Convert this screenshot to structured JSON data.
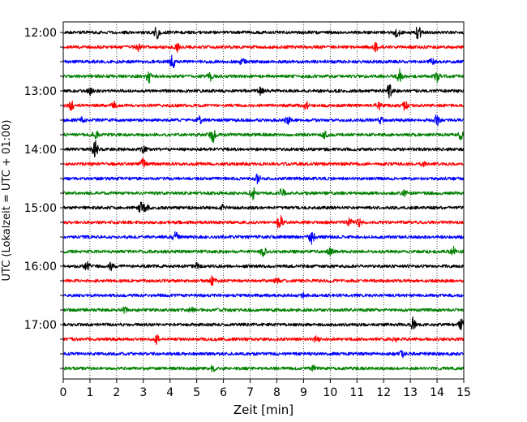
{
  "chart_data": {
    "type": "line",
    "title": "",
    "xlabel": "Zeit  [min]",
    "ylabel": "UTC (Lokalzeit = UTC + 01:00)",
    "xlim": [
      0,
      15
    ],
    "x_ticks": [
      "0",
      "1",
      "2",
      "3",
      "4",
      "5",
      "6",
      "7",
      "8",
      "9",
      "10",
      "11",
      "12",
      "13",
      "14",
      "15"
    ],
    "y_ticks": [
      "12:00",
      "13:00",
      "14:00",
      "15:00",
      "16:00",
      "17:00"
    ],
    "grid": "vertical dotted",
    "legend": "none",
    "trace_colors": [
      "#000000",
      "#ff0000",
      "#0000ff",
      "#008000"
    ],
    "traces": [
      {
        "time": "12:00",
        "color": "#000000",
        "events": [
          [
            3.5,
            8
          ],
          [
            12.5,
            7
          ],
          [
            13.3,
            9
          ]
        ]
      },
      {
        "time": "12:15",
        "color": "#ff0000",
        "events": [
          [
            2.8,
            5
          ],
          [
            4.3,
            5
          ],
          [
            11.7,
            4
          ]
        ]
      },
      {
        "time": "12:30",
        "color": "#0000ff",
        "events": [
          [
            4.1,
            8
          ],
          [
            6.7,
            4
          ],
          [
            13.8,
            3
          ]
        ]
      },
      {
        "time": "12:45",
        "color": "#008000",
        "events": [
          [
            3.2,
            7
          ],
          [
            5.5,
            5
          ],
          [
            12.6,
            9
          ],
          [
            14.0,
            6
          ]
        ]
      },
      {
        "time": "13:00",
        "color": "#000000",
        "events": [
          [
            1.0,
            4
          ],
          [
            7.4,
            4
          ],
          [
            12.2,
            9
          ]
        ]
      },
      {
        "time": "13:15",
        "color": "#ff0000",
        "events": [
          [
            0.3,
            5
          ],
          [
            1.9,
            4
          ],
          [
            9.1,
            4
          ],
          [
            11.8,
            5
          ],
          [
            12.8,
            5
          ]
        ]
      },
      {
        "time": "13:30",
        "color": "#0000ff",
        "events": [
          [
            0.7,
            3
          ],
          [
            5.1,
            4
          ],
          [
            8.4,
            4
          ],
          [
            11.9,
            4
          ],
          [
            14.0,
            6
          ]
        ]
      },
      {
        "time": "13:45",
        "color": "#008000",
        "events": [
          [
            1.2,
            6
          ],
          [
            5.6,
            9
          ],
          [
            9.8,
            4
          ],
          [
            14.9,
            5
          ]
        ]
      },
      {
        "time": "14:00",
        "color": "#000000",
        "events": [
          [
            1.2,
            10
          ],
          [
            3.0,
            3
          ]
        ]
      },
      {
        "time": "14:15",
        "color": "#ff0000",
        "events": [
          [
            3.0,
            6
          ],
          [
            13.5,
            3
          ]
        ]
      },
      {
        "time": "14:30",
        "color": "#0000ff",
        "events": [
          [
            7.3,
            6
          ]
        ]
      },
      {
        "time": "14:45",
        "color": "#008000",
        "events": [
          [
            7.1,
            7
          ],
          [
            8.2,
            6
          ],
          [
            12.8,
            3
          ]
        ]
      },
      {
        "time": "15:00",
        "color": "#000000",
        "events": [
          [
            2.9,
            6
          ],
          [
            3.1,
            5
          ],
          [
            6.0,
            3
          ]
        ]
      },
      {
        "time": "15:15",
        "color": "#ff0000",
        "events": [
          [
            8.1,
            13
          ],
          [
            10.7,
            5
          ],
          [
            11.1,
            4
          ]
        ]
      },
      {
        "time": "15:30",
        "color": "#0000ff",
        "events": [
          [
            4.2,
            6
          ],
          [
            9.3,
            8
          ]
        ]
      },
      {
        "time": "15:45",
        "color": "#008000",
        "events": [
          [
            7.5,
            6
          ],
          [
            10.0,
            4
          ],
          [
            14.6,
            5
          ]
        ]
      },
      {
        "time": "16:00",
        "color": "#000000",
        "events": [
          [
            0.9,
            5
          ],
          [
            1.8,
            4
          ],
          [
            5.0,
            3
          ]
        ]
      },
      {
        "time": "16:15",
        "color": "#ff0000",
        "events": [
          [
            5.6,
            6
          ],
          [
            8.0,
            3
          ]
        ]
      },
      {
        "time": "16:30",
        "color": "#0000ff",
        "events": [
          [
            9.0,
            3
          ]
        ]
      },
      {
        "time": "16:45",
        "color": "#008000",
        "events": [
          [
            2.3,
            3
          ],
          [
            4.8,
            3
          ]
        ]
      },
      {
        "time": "17:00",
        "color": "#000000",
        "events": [
          [
            13.1,
            8
          ],
          [
            14.9,
            6
          ]
        ]
      },
      {
        "time": "17:15",
        "color": "#ff0000",
        "events": [
          [
            3.5,
            5
          ],
          [
            9.5,
            4
          ],
          [
            12.4,
            3
          ]
        ]
      },
      {
        "time": "17:30",
        "color": "#0000ff",
        "events": [
          [
            12.7,
            3
          ]
        ]
      },
      {
        "time": "17:45",
        "color": "#008000",
        "events": [
          [
            5.6,
            3
          ],
          [
            9.4,
            3
          ]
        ]
      }
    ]
  }
}
